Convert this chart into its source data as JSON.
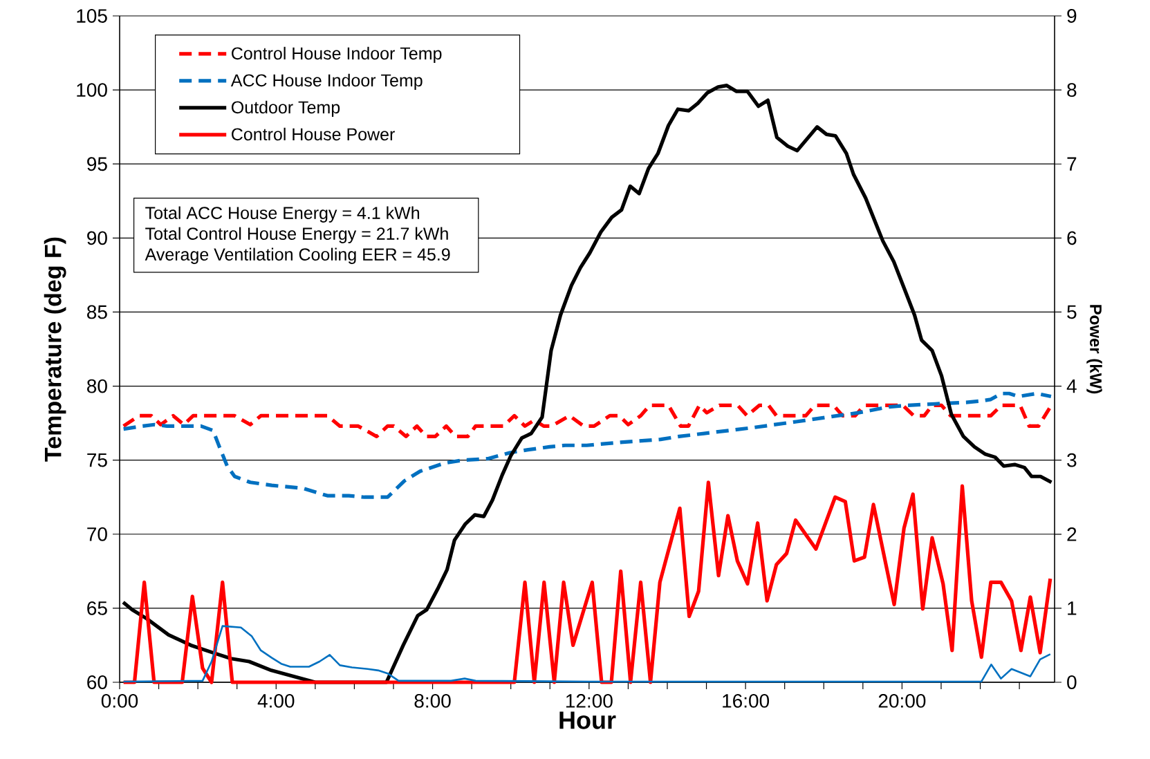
{
  "chart_data": {
    "type": "line",
    "xlabel": "Hour",
    "ylabel": "Temperature (deg F)",
    "y2label": "Power (kW)",
    "xlim": [
      0,
      23.9
    ],
    "ylim": [
      60,
      105
    ],
    "y2lim": [
      0,
      9
    ],
    "xticks": [
      {
        "value": 0,
        "label": "0:00"
      },
      {
        "value": 1,
        "label": null
      },
      {
        "value": 2,
        "label": null
      },
      {
        "value": 3,
        "label": null
      },
      {
        "value": 4,
        "label": "4:00"
      },
      {
        "value": 5,
        "label": null
      },
      {
        "value": 6,
        "label": null
      },
      {
        "value": 7,
        "label": null
      },
      {
        "value": 8,
        "label": "8:00"
      },
      {
        "value": 9,
        "label": null
      },
      {
        "value": 10,
        "label": null
      },
      {
        "value": 11,
        "label": null
      },
      {
        "value": 12,
        "label": "12:00"
      },
      {
        "value": 13,
        "label": null
      },
      {
        "value": 14,
        "label": null
      },
      {
        "value": 15,
        "label": null
      },
      {
        "value": 16,
        "label": "16:00"
      },
      {
        "value": 17,
        "label": null
      },
      {
        "value": 18,
        "label": null
      },
      {
        "value": 19,
        "label": null
      },
      {
        "value": 20,
        "label": "20:00"
      },
      {
        "value": 21,
        "label": null
      },
      {
        "value": 22,
        "label": null
      },
      {
        "value": 23,
        "label": null
      }
    ],
    "yticks": [
      60,
      65,
      70,
      75,
      80,
      85,
      90,
      95,
      100,
      105
    ],
    "y2ticks": [
      0,
      1,
      2,
      3,
      4,
      5,
      6,
      7,
      8,
      9
    ],
    "grid": "y",
    "legend": "top left",
    "marker": "none",
    "annotations": [
      "Total ACC House Energy = 4.1 kWh",
      "Total Control House Energy = 21.7 kWh",
      "Average Ventilation Cooling EER = 45.9"
    ],
    "series": [
      {
        "name": "Control House Indoor Temp",
        "color": "#ff0000",
        "line_style": "dashed",
        "x": [
          0.1,
          0.5,
          0.81,
          1.05,
          1.37,
          1.64,
          1.88,
          2.94,
          3.34,
          3.61,
          5.31,
          5.63,
          6.1,
          6.57,
          6.85,
          7.01,
          7.32,
          7.6,
          7.84,
          8.07,
          8.35,
          8.59,
          8.9,
          9.1,
          9.81,
          10.09,
          10.36,
          10.6,
          10.84,
          11.04,
          11.5,
          11.86,
          12.13,
          12.53,
          12.77,
          13.0,
          13.32,
          13.55,
          14.03,
          14.34,
          14.54,
          14.82,
          15.01,
          15.33,
          15.8,
          16.04,
          16.35,
          16.59,
          16.79,
          17.54,
          17.77,
          18.25,
          18.48,
          18.8,
          19.04,
          20.02,
          20.3,
          20.57,
          20.77,
          21.01,
          21.24,
          22.27,
          22.54,
          23.02,
          23.25,
          23.49,
          23.77
        ],
        "values": [
          77.3,
          78,
          78,
          77.4,
          78,
          77.4,
          78,
          78,
          77.4,
          78,
          78,
          77.3,
          77.3,
          76.6,
          77.3,
          77.3,
          76.6,
          77.3,
          76.6,
          76.6,
          77.3,
          76.6,
          76.6,
          77.3,
          77.3,
          78,
          77.3,
          77.7,
          77.3,
          77.3,
          78,
          77.3,
          77.3,
          78,
          78,
          77.4,
          78,
          78.7,
          78.7,
          77.3,
          77.3,
          78.7,
          78.2,
          78.7,
          78.7,
          78,
          78.7,
          78.7,
          78,
          78,
          78.7,
          78.7,
          78,
          78,
          78.7,
          78.7,
          78,
          78,
          78.7,
          78.7,
          78,
          78,
          78.7,
          78.7,
          77.3,
          77.3,
          78.5
        ]
      },
      {
        "name": "ACC House Indoor Temp",
        "color": "#0070c0",
        "line_style": "dashed",
        "x": [
          0.1,
          0.58,
          0.89,
          1.21,
          2.08,
          2.39,
          2.55,
          2.75,
          2.94,
          3.34,
          3.89,
          4.68,
          5.31,
          5.86,
          6.26,
          6.85,
          7.28,
          7.68,
          8.31,
          8.78,
          9.42,
          9.97,
          10.44,
          10.99,
          11.39,
          11.94,
          12.8,
          13.83,
          14.3,
          15.25,
          16.2,
          17.3,
          18.09,
          18.88,
          19.67,
          20.14,
          20.85,
          21.64,
          22.03,
          22.27,
          22.54,
          22.74,
          22.98,
          23.45,
          23.81
        ],
        "values": [
          77.1,
          77.3,
          77.4,
          77.3,
          77.3,
          77.0,
          75.9,
          74.6,
          73.9,
          73.5,
          73.3,
          73.1,
          72.6,
          72.6,
          72.5,
          72.5,
          73.6,
          74.25,
          74.8,
          75.0,
          75.1,
          75.5,
          75.7,
          75.9,
          76.0,
          76.0,
          76.2,
          76.4,
          76.6,
          76.9,
          77.2,
          77.6,
          77.9,
          78.2,
          78.6,
          78.7,
          78.8,
          78.9,
          79.0,
          79.1,
          79.5,
          79.5,
          79.3,
          79.5,
          79.3
        ]
      },
      {
        "name": "Outdoor Temp",
        "color": "#000000",
        "line_style": "solid",
        "x": [
          0.09,
          0.32,
          0.69,
          1.25,
          1.82,
          2.38,
          2.85,
          3.31,
          3.88,
          4.44,
          5.0,
          6.82,
          7.25,
          7.62,
          7.85,
          8.13,
          8.37,
          8.56,
          8.84,
          9.08,
          9.31,
          9.53,
          9.78,
          10.0,
          10.28,
          10.52,
          10.8,
          11.03,
          11.27,
          11.55,
          11.78,
          12.02,
          12.3,
          12.58,
          12.83,
          13.05,
          13.28,
          13.52,
          13.76,
          14.03,
          14.27,
          14.55,
          14.78,
          15.02,
          15.3,
          15.52,
          15.77,
          16.05,
          16.33,
          16.57,
          16.8,
          17.08,
          17.32,
          17.83,
          18.07,
          18.3,
          18.58,
          18.76,
          19.07,
          19.51,
          19.79,
          20.07,
          20.32,
          20.5,
          20.77,
          21.01,
          21.26,
          21.57,
          21.85,
          22.13,
          22.38,
          22.6,
          22.88,
          23.13,
          23.31,
          23.54,
          23.82
        ],
        "values": [
          65.4,
          64.9,
          64.3,
          63.2,
          62.5,
          62.0,
          61.6,
          61.4,
          60.8,
          60.4,
          60,
          60,
          62.5,
          64.5,
          64.9,
          66.3,
          67.6,
          69.6,
          70.7,
          71.3,
          71.2,
          72.3,
          74.0,
          75.3,
          76.5,
          76.8,
          77.9,
          82.4,
          84.8,
          86.8,
          88.0,
          89.0,
          90.4,
          91.4,
          91.9,
          93.5,
          93.0,
          94.7,
          95.7,
          97.6,
          98.7,
          98.6,
          99.1,
          99.8,
          100.2,
          100.3,
          99.9,
          99.9,
          98.9,
          99.3,
          96.8,
          96.2,
          95.9,
          97.5,
          97.0,
          96.9,
          95.7,
          94.3,
          92.7,
          89.8,
          88.4,
          86.5,
          84.8,
          83.1,
          82.4,
          80.7,
          78.1,
          76.6,
          75.9,
          75.4,
          75.2,
          74.6,
          74.7,
          74.5,
          73.9,
          73.9,
          73.5
        ]
      },
      {
        "name": "Control House Power",
        "color": "#ff0000",
        "line_style": "solid",
        "axis": "y2",
        "x": [
          0.1,
          0.38,
          0.63,
          0.88,
          1.6,
          1.86,
          2.12,
          2.35,
          2.63,
          2.88,
          10.09,
          10.36,
          10.6,
          10.85,
          11.11,
          11.35,
          11.59,
          12.08,
          12.32,
          12.57,
          12.81,
          13.06,
          13.32,
          13.57,
          13.81,
          14.32,
          14.56,
          14.8,
          15.05,
          15.31,
          15.55,
          15.79,
          16.05,
          16.31,
          16.55,
          16.79,
          17.05,
          17.28,
          17.8,
          18.29,
          18.55,
          18.78,
          19.04,
          19.27,
          19.8,
          20.05,
          20.28,
          20.53,
          20.77,
          21.05,
          21.28,
          21.54,
          21.78,
          22.03,
          22.27,
          22.53,
          22.8,
          23.04,
          23.28,
          23.53,
          23.79
        ],
        "values": [
          0,
          0,
          1.35,
          0,
          0,
          1.16,
          0.19,
          0,
          1.35,
          0,
          0,
          1.35,
          0,
          1.35,
          0,
          1.35,
          0.5,
          1.35,
          0,
          0,
          1.5,
          0,
          1.35,
          0,
          1.35,
          2.35,
          0.89,
          1.23,
          2.7,
          1.44,
          2.25,
          1.64,
          1.33,
          2.15,
          1.1,
          1.59,
          1.74,
          2.19,
          1.8,
          2.5,
          2.44,
          1.64,
          1.69,
          2.4,
          1.05,
          2.08,
          2.54,
          0.99,
          1.95,
          1.33,
          0.43,
          2.65,
          1.1,
          0.34,
          1.35,
          1.35,
          1.1,
          0.43,
          1.15,
          0.4,
          1.4
        ]
      },
      {
        "color": "#0070c0",
        "line_style": "solid",
        "axis": "y2",
        "x": [
          0.1,
          2.12,
          2.35,
          2.63,
          3.1,
          3.38,
          3.61,
          3.89,
          4.13,
          4.36,
          4.84,
          5.11,
          5.37,
          5.63,
          5.94,
          6.34,
          6.61,
          6.85,
          7.13,
          8.47,
          8.82,
          9.1,
          12.0,
          16.0,
          20.0,
          22.03,
          22.28,
          22.53,
          22.8,
          23.28,
          23.53,
          23.79
        ],
        "values": [
          0.01,
          0.02,
          0.28,
          0.76,
          0.74,
          0.62,
          0.43,
          0.33,
          0.25,
          0.21,
          0.21,
          0.28,
          0.37,
          0.23,
          0.2,
          0.18,
          0.16,
          0.12,
          0.02,
          0.02,
          0.05,
          0.02,
          0.01,
          0.01,
          0.01,
          0.01,
          0.24,
          0.05,
          0.18,
          0.08,
          0.31,
          0.38
        ]
      }
    ]
  }
}
